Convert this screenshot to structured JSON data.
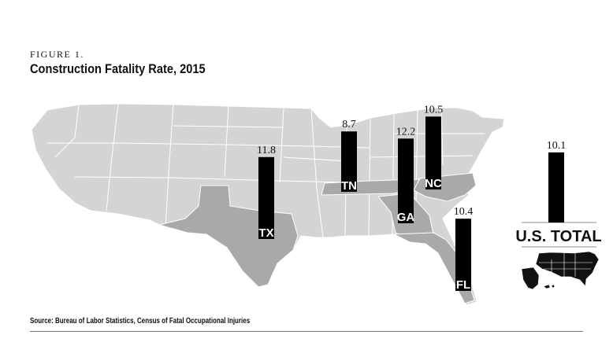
{
  "figure_label": "FIGURE 1.",
  "title": "Construction Fatality Rate, 2015",
  "source": "Source: Bureau of Labor Statistics, Census of Fatal Occupational Injuries",
  "colors": {
    "map_base": "#d4d4d4",
    "map_highlight": "#a9a9a9",
    "bar": "#000000",
    "label_text": "#ffffff"
  },
  "chart_data": {
    "type": "bar",
    "categories": [
      "TX",
      "TN",
      "GA",
      "NC",
      "FL"
    ],
    "values": [
      11.8,
      8.7,
      12.2,
      10.5,
      10.4
    ],
    "total": {
      "label": "U.S. TOTAL",
      "value": 10.1
    }
  }
}
